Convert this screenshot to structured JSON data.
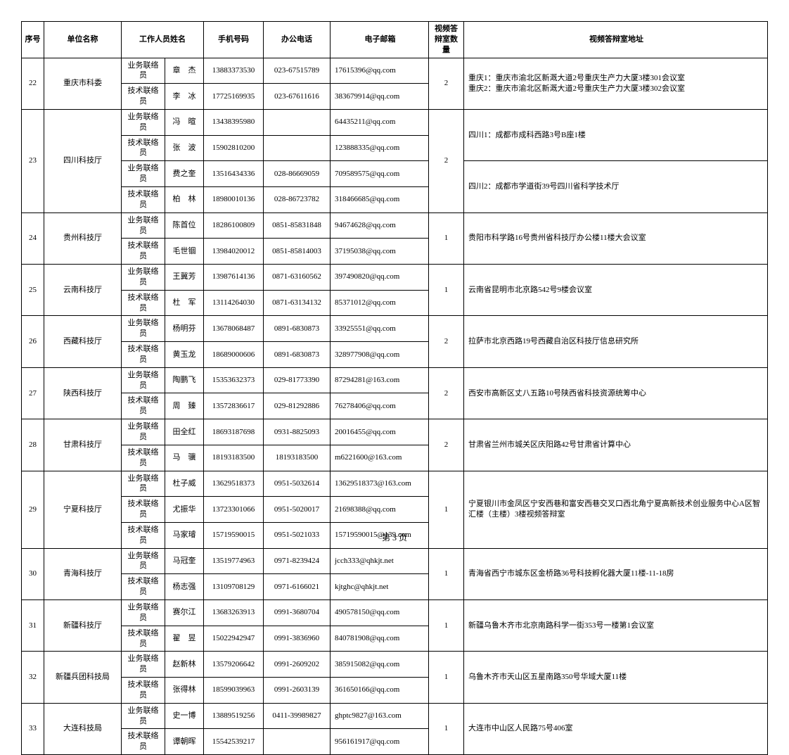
{
  "headers": {
    "seq": "序号",
    "unit": "单位名称",
    "staff": "工作人员姓名",
    "mobile": "手机号码",
    "office_tel": "办公电话",
    "email": "电子邮箱",
    "room_qty": "视频答辩室数量",
    "room_addr": "视频答辩室地址"
  },
  "footer": "第 3 页",
  "groups": [
    {
      "seq": "22",
      "unit": "重庆市科委",
      "qty": "2",
      "addr_segments": [
        {
          "rowspan": 2,
          "text": "重庆1：重庆市渝北区新溉大道2号重庆生产力大厦3楼301会议室\n重庆2：重庆市渝北区新溉大道2号重庆生产力大厦3楼302会议室"
        }
      ],
      "rows": [
        {
          "role": "业务联络员",
          "name": "章　杰",
          "mobile": "13883373530",
          "tel": "023-67515789",
          "email": "17615396@qq.com"
        },
        {
          "role": "技术联络员",
          "name": "李　冰",
          "mobile": "17725169935",
          "tel": "023-67611616",
          "email": "383679914@qq.com"
        }
      ]
    },
    {
      "seq": "23",
      "unit": "四川科技厅",
      "qty": "2",
      "addr_segments": [
        {
          "rowspan": 2,
          "text": "四川1：成都市成科西路3号B座1楼"
        },
        {
          "rowspan": 2,
          "text": "四川2：成都市学道街39号四川省科学技术厅"
        }
      ],
      "rows": [
        {
          "role": "业务联络员",
          "name": "冯　暄",
          "mobile": "13438395980",
          "tel": "",
          "email": "64435211@qq.com"
        },
        {
          "role": "技术联络员",
          "name": "张　波",
          "mobile": "15902810200",
          "tel": "",
          "email": "123888335@qq.com"
        },
        {
          "role": "业务联络员",
          "name": "费之奎",
          "mobile": "13516434336",
          "tel": "028-86669059",
          "email": "709589575@qq.com"
        },
        {
          "role": "技术联络员",
          "name": "柏　林",
          "mobile": "18980010136",
          "tel": "028-86723782",
          "email": "318466685@qq.com"
        }
      ]
    },
    {
      "seq": "24",
      "unit": "贵州科技厅",
      "qty": "1",
      "addr_segments": [
        {
          "rowspan": 2,
          "text": "贵阳市科学路16号贵州省科技厅办公楼11楼大会议室"
        }
      ],
      "rows": [
        {
          "role": "业务联络员",
          "name": "陈首位",
          "mobile": "18286100809",
          "tel": "0851-85831848",
          "email": "94674628@qq.com"
        },
        {
          "role": "技术联络员",
          "name": "毛世锢",
          "mobile": "13984020012",
          "tel": "0851-85814003",
          "email": "37195038@qq.com"
        }
      ]
    },
    {
      "seq": "25",
      "unit": "云南科技厅",
      "qty": "1",
      "addr_segments": [
        {
          "rowspan": 2,
          "text": "云南省昆明市北京路542号9楼会议室"
        }
      ],
      "rows": [
        {
          "role": "业务联络员",
          "name": "王冀芳",
          "mobile": "13987614136",
          "tel": "0871-63160562",
          "email": "397490820@qq.com"
        },
        {
          "role": "技术联络员",
          "name": "杜　军",
          "mobile": "13114264030",
          "tel": "0871-63134132",
          "email": "85371012@qq.com"
        }
      ]
    },
    {
      "seq": "26",
      "unit": "西藏科技厅",
      "qty": "2",
      "addr_segments": [
        {
          "rowspan": 2,
          "text": "拉萨市北京西路19号西藏自治区科技厅信息研究所"
        }
      ],
      "rows": [
        {
          "role": "业务联络员",
          "name": "杨明芬",
          "mobile": "13678068487",
          "tel": "0891-6830873",
          "email": "33925551@qq.com"
        },
        {
          "role": "技术联络员",
          "name": "黄玉龙",
          "mobile": "18689000606",
          "tel": "0891-6830873",
          "email": "328977908@qq.com"
        }
      ]
    },
    {
      "seq": "27",
      "unit": "陕西科技厅",
      "qty": "2",
      "addr_segments": [
        {
          "rowspan": 2,
          "text": "西安市高新区丈八五路10号陕西省科技资源统筹中心"
        }
      ],
      "rows": [
        {
          "role": "业务联络员",
          "name": "陶鹏飞",
          "mobile": "15353632373",
          "tel": "029-81773390",
          "email": "87294281@163.com"
        },
        {
          "role": "技术联络员",
          "name": "周　臻",
          "mobile": "13572836617",
          "tel": "029-81292886",
          "email": "76278406@qq.com"
        }
      ]
    },
    {
      "seq": "28",
      "unit": "甘肃科技厅",
      "qty": "2",
      "addr_segments": [
        {
          "rowspan": 2,
          "text": "甘肃省兰州市城关区庆阳路42号甘肃省计算中心"
        }
      ],
      "rows": [
        {
          "role": "业务联络员",
          "name": "田全红",
          "mobile": "18693187698",
          "tel": "0931-8825093",
          "email": "20016455@qq.com"
        },
        {
          "role": "技术联络员",
          "name": "马　骥",
          "mobile": "18193183500",
          "tel": "18193183500",
          "email": "m6221600@163.com"
        }
      ]
    },
    {
      "seq": "29",
      "unit": "宁夏科技厅",
      "qty": "1",
      "addr_segments": [
        {
          "rowspan": 3,
          "text": "宁夏银川市金凤区宁安西巷和富安西巷交叉口西北角宁夏高新技术创业服务中心A区智汇楼（主楼）3楼视频答辩室"
        }
      ],
      "rows": [
        {
          "role": "业务联络员",
          "name": "杜子威",
          "mobile": "13629518373",
          "tel": "0951-5032614",
          "email": "13629518373@163.com"
        },
        {
          "role": "技术联络员",
          "name": "尤振华",
          "mobile": "13723301066",
          "tel": "0951-5020017",
          "email": "21698388@qq.com"
        },
        {
          "role": "技术联络员",
          "name": "马家璿",
          "mobile": "15719590015",
          "tel": "0951-5021033",
          "email": "15719590015@139.com"
        }
      ]
    },
    {
      "seq": "30",
      "unit": "青海科技厅",
      "qty": "1",
      "addr_segments": [
        {
          "rowspan": 2,
          "text": "青海省西宁市城东区金桥路36号科技孵化器大厦11楼-11-18房"
        }
      ],
      "rows": [
        {
          "role": "业务联络员",
          "name": "马冠奎",
          "mobile": "13519774963",
          "tel": "0971-8239424",
          "email": "jcch333@qhkjt.net"
        },
        {
          "role": "技术联络员",
          "name": "杨志强",
          "mobile": "13109708129",
          "tel": "0971-6166021",
          "email": "kjtghc@qhkjt.net"
        }
      ]
    },
    {
      "seq": "31",
      "unit": "新疆科技厅",
      "qty": "1",
      "addr_segments": [
        {
          "rowspan": 2,
          "text": "新疆乌鲁木齐市北京南路科学一街353号一楼第1会议室"
        }
      ],
      "rows": [
        {
          "role": "业务联络员",
          "name": "赛尔江",
          "mobile": "13683263913",
          "tel": "0991-3680704",
          "email": "490578150@qq.com"
        },
        {
          "role": "技术联络员",
          "name": "翟　昱",
          "mobile": "15022942947",
          "tel": "0991-3836960",
          "email": "840781908@qq.com"
        }
      ]
    },
    {
      "seq": "32",
      "unit": "新疆兵团科技局",
      "qty": "1",
      "addr_segments": [
        {
          "rowspan": 2,
          "text": "乌鲁木齐市天山区五星南路350号华域大厦11楼"
        }
      ],
      "rows": [
        {
          "role": "业务联络员",
          "name": "赵新林",
          "mobile": "13579206642",
          "tel": "0991-2609202",
          "email": "385915082@qq.com"
        },
        {
          "role": "技术联络员",
          "name": "张得林",
          "mobile": "18599039963",
          "tel": "0991-2603139",
          "email": "361650166@qq.com"
        }
      ]
    },
    {
      "seq": "33",
      "unit": "大连科技局",
      "qty": "1",
      "addr_segments": [
        {
          "rowspan": 2,
          "text": "大连市中山区人民路75号406室"
        }
      ],
      "rows": [
        {
          "role": "业务联络员",
          "name": "史一博",
          "mobile": "13889519256",
          "tel": "0411-39989827",
          "email": "ghptc9827@163.com"
        },
        {
          "role": "技术联络员",
          "name": "谭朝晖",
          "mobile": "15542539217",
          "tel": "",
          "email": "956161917@qq.com"
        }
      ]
    }
  ]
}
